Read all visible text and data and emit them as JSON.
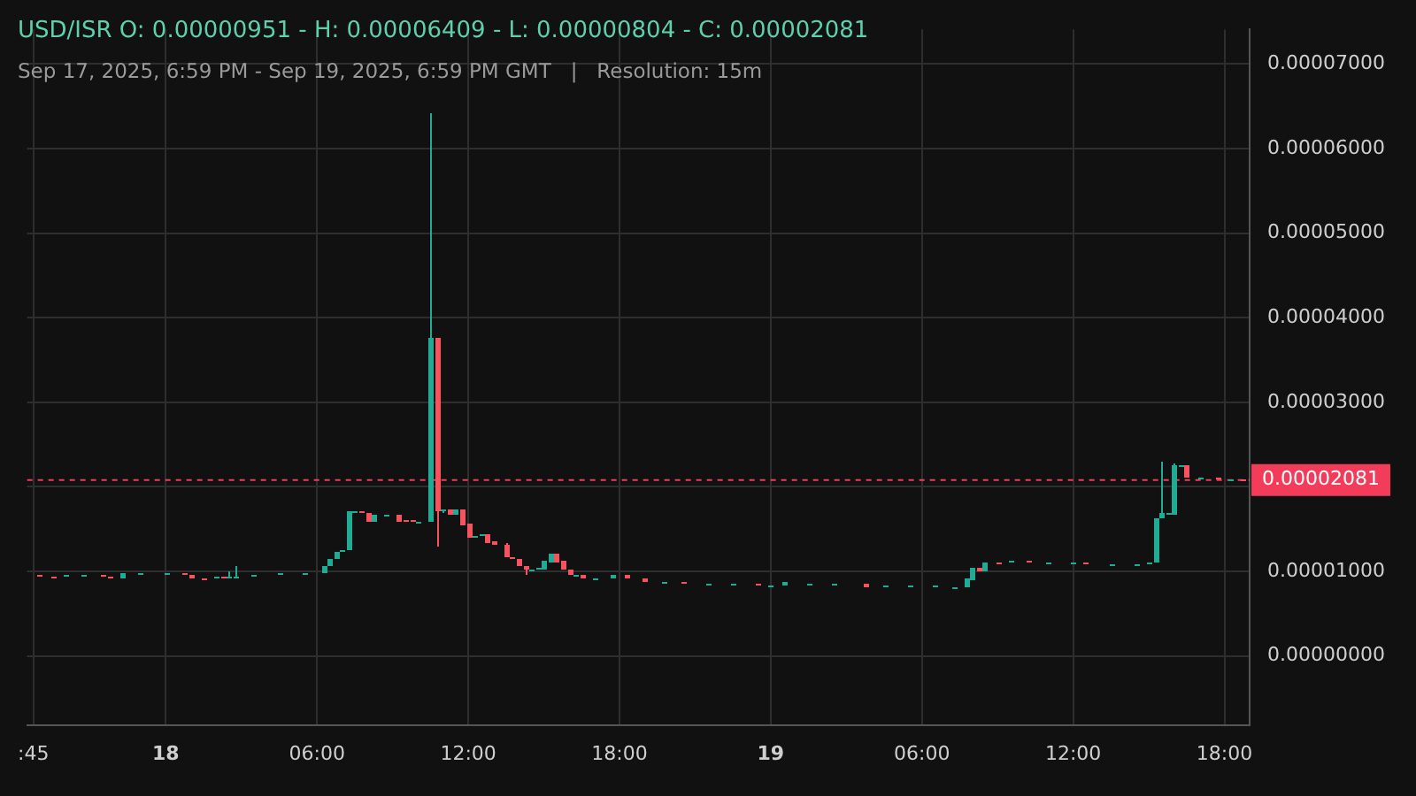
{
  "chart_data": {
    "type": "candlestick",
    "title": "USD/ISR O: 0.00000951 - H: 0.00006409 - L: 0.00000804 - C: 0.00002081",
    "subtitle": "Sep 17, 2025, 6:59 PM - Sep 19, 2025, 6:59 PM GMT   |   Resolution: 15m",
    "x": [
      "2025-09-17T19:00",
      "2025-09-17T19:30",
      "2025-09-17T20:00",
      "2025-09-17T20:45",
      "2025-09-17T21:30",
      "2025-09-17T21:45",
      "2025-09-17T22:15",
      "2025-09-17T23:00",
      "2025-09-18T00:00",
      "2025-09-18T00:45",
      "2025-09-18T01:00",
      "2025-09-18T01:30",
      "2025-09-18T02:00",
      "2025-09-18T02:15",
      "2025-09-18T02:30",
      "2025-09-18T02:45",
      "2025-09-18T03:30",
      "2025-09-18T04:30",
      "2025-09-18T05:30",
      "2025-09-18T06:15",
      "2025-09-18T06:30",
      "2025-09-18T06:45",
      "2025-09-18T07:00",
      "2025-09-18T07:15",
      "2025-09-18T07:30",
      "2025-09-18T07:45",
      "2025-09-18T08:00",
      "2025-09-18T08:15",
      "2025-09-18T08:45",
      "2025-09-18T09:15",
      "2025-09-18T09:30",
      "2025-09-18T09:45",
      "2025-09-18T10:00",
      "2025-09-18T10:30",
      "2025-09-18T10:45",
      "2025-09-18T11:00",
      "2025-09-18T11:15",
      "2025-09-18T11:30",
      "2025-09-18T11:45",
      "2025-09-18T12:00",
      "2025-09-18T12:15",
      "2025-09-18T12:30",
      "2025-09-18T12:45",
      "2025-09-18T13:00",
      "2025-09-18T13:30",
      "2025-09-18T13:45",
      "2025-09-18T14:00",
      "2025-09-18T14:15",
      "2025-09-18T14:30",
      "2025-09-18T14:45",
      "2025-09-18T15:00",
      "2025-09-18T15:15",
      "2025-09-18T15:30",
      "2025-09-18T15:45",
      "2025-09-18T16:00",
      "2025-09-18T16:15",
      "2025-09-18T16:30",
      "2025-09-18T17:00",
      "2025-09-18T17:45",
      "2025-09-18T18:15",
      "2025-09-18T19:00",
      "2025-09-18T19:45",
      "2025-09-18T20:30",
      "2025-09-18T21:30",
      "2025-09-18T22:30",
      "2025-09-18T23:30",
      "2025-09-19T00:00",
      "2025-09-19T00:30",
      "2025-09-19T01:30",
      "2025-09-19T02:30",
      "2025-09-19T03:45",
      "2025-09-19T04:30",
      "2025-09-19T05:30",
      "2025-09-19T06:30",
      "2025-09-19T07:15",
      "2025-09-19T07:45",
      "2025-09-19T08:00",
      "2025-09-19T08:15",
      "2025-09-19T08:30",
      "2025-09-19T09:00",
      "2025-09-19T09:30",
      "2025-09-19T10:15",
      "2025-09-19T11:00",
      "2025-09-19T12:00",
      "2025-09-19T12:30",
      "2025-09-19T13:30",
      "2025-09-19T14:30",
      "2025-09-19T15:00",
      "2025-09-19T15:15",
      "2025-09-19T15:30",
      "2025-09-19T15:45",
      "2025-09-19T16:00",
      "2025-09-19T16:15",
      "2025-09-19T16:30",
      "2025-09-19T17:00",
      "2025-09-19T17:45",
      "2025-09-19T18:15",
      "2025-09-19T18:45"
    ],
    "ohlc": [
      [
        9.51e-06,
        9.51e-06,
        9.35e-06,
        9.35e-06
      ],
      [
        9.35e-06,
        9.35e-06,
        9.35e-06,
        9.35e-06
      ],
      [
        9.35e-06,
        9.6e-06,
        9.35e-06,
        9.6e-06
      ],
      [
        9.6e-06,
        9.6e-06,
        9.6e-06,
        9.6e-06
      ],
      [
        9.6e-06,
        9.6e-06,
        9.35e-06,
        9.35e-06
      ],
      [
        9.35e-06,
        9.35e-06,
        9.2e-06,
        9.2e-06
      ],
      [
        9.2e-06,
        9.85e-06,
        9.2e-06,
        9.85e-06
      ],
      [
        9.85e-06,
        9.85e-06,
        9.85e-06,
        9.85e-06
      ],
      [
        9.85e-06,
        9.85e-06,
        9.85e-06,
        9.85e-06
      ],
      [
        9.85e-06,
        9.85e-06,
        9.65e-06,
        9.65e-06
      ],
      [
        9.65e-06,
        9.65e-06,
        9.25e-06,
        9.25e-06
      ],
      [
        9.25e-06,
        9.25e-06,
        9.25e-06,
        9.25e-06
      ],
      [
        9.25e-06,
        9.45e-06,
        9.25e-06,
        9.45e-06
      ],
      [
        9.45e-06,
        9.45e-06,
        9.25e-06,
        9.25e-06
      ],
      [
        9.25e-06,
        1.01e-05,
        9.25e-06,
        9.45e-06
      ],
      [
        9.45e-06,
        1.065e-05,
        9.45e-06,
        9.45e-06
      ],
      [
        9.45e-06,
        9.6e-06,
        9.45e-06,
        9.6e-06
      ],
      [
        9.6e-06,
        9.85e-06,
        9.6e-06,
        9.85e-06
      ],
      [
        9.85e-06,
        9.85e-06,
        9.85e-06,
        9.85e-06
      ],
      [
        9.85e-06,
        1.065e-05,
        9.85e-06,
        1.065e-05
      ],
      [
        1.065e-05,
        1.155e-05,
        1.065e-05,
        1.155e-05
      ],
      [
        1.155e-05,
        1.237e-05,
        1.155e-05,
        1.237e-05
      ],
      [
        1.237e-05,
        1.251e-05,
        1.237e-05,
        1.251e-05
      ],
      [
        1.251e-05,
        1.704e-05,
        1.251e-05,
        1.704e-05
      ],
      [
        1.704e-05,
        1.718e-05,
        1.704e-05,
        1.718e-05
      ],
      [
        1.718e-05,
        1.718e-05,
        1.69e-05,
        1.69e-05
      ],
      [
        1.69e-05,
        1.69e-05,
        1.595e-05,
        1.595e-05
      ],
      [
        1.595e-05,
        1.67e-05,
        1.595e-05,
        1.663e-05
      ],
      [
        1.67e-05,
        1.67e-05,
        1.67e-05,
        1.67e-05
      ],
      [
        1.67e-05,
        1.67e-05,
        1.595e-05,
        1.595e-05
      ],
      [
        1.605e-05,
        1.605e-05,
        1.605e-05,
        1.605e-05
      ],
      [
        1.605e-05,
        1.605e-05,
        1.581e-05,
        1.581e-05
      ],
      [
        1.581e-05,
        1.588e-05,
        1.581e-05,
        1.588e-05
      ],
      [
        1.581e-05,
        6.409e-05,
        1.581e-05,
        3.766e-05
      ],
      [
        3.766e-05,
        3.766e-05,
        1.285e-05,
        1.718e-05
      ],
      [
        1.718e-05,
        1.732e-05,
        1.691e-05,
        1.725e-05
      ],
      [
        1.732e-05,
        1.732e-05,
        1.677e-05,
        1.677e-05
      ],
      [
        1.677e-05,
        1.732e-05,
        1.677e-05,
        1.732e-05
      ],
      [
        1.732e-05,
        1.732e-05,
        1.553e-05,
        1.553e-05
      ],
      [
        1.56e-05,
        1.56e-05,
        1.388e-05,
        1.388e-05
      ],
      [
        1.388e-05,
        1.416e-05,
        1.388e-05,
        1.416e-05
      ],
      [
        1.416e-05,
        1.43e-05,
        1.416e-05,
        1.43e-05
      ],
      [
        1.43e-05,
        1.443e-05,
        1.34e-05,
        1.34e-05
      ],
      [
        1.361e-05,
        1.361e-05,
        1.306e-05,
        1.306e-05
      ],
      [
        1.313e-05,
        1.34e-05,
        1.161e-05,
        1.161e-05
      ],
      [
        1.168e-05,
        1.168e-05,
        1.141e-05,
        1.141e-05
      ],
      [
        1.155e-05,
        1.155e-05,
        1.058e-05,
        1.065e-05
      ],
      [
        1.072e-05,
        1.072e-05,
        9.55e-06,
        1.017e-05
      ],
      [
        1.017e-05,
        1.031e-05,
        1.017e-05,
        1.031e-05
      ],
      [
        1.017e-05,
        1.051e-05,
        1.017e-05,
        1.051e-05
      ],
      [
        1.031e-05,
        1.134e-05,
        1.031e-05,
        1.134e-05
      ],
      [
        1.113e-05,
        1.216e-05,
        1.113e-05,
        1.216e-05
      ],
      [
        1.216e-05,
        1.216e-05,
        1.113e-05,
        1.113e-05
      ],
      [
        1.134e-05,
        1.134e-05,
        1.017e-05,
        1.017e-05
      ],
      [
        1.024e-05,
        1.024e-05,
        9.55e-06,
        9.55e-06
      ],
      [
        9.55e-06,
        9.62e-06,
        9.55e-06,
        9.62e-06
      ],
      [
        9.62e-06,
        9.62e-06,
        9.14e-06,
        9.14e-06
      ],
      [
        9.14e-06,
        9.21e-06,
        9.14e-06,
        9.21e-06
      ],
      [
        9.14e-06,
        9.48e-06,
        9.14e-06,
        9.48e-06
      ],
      [
        9.49e-06,
        9.49e-06,
        9.21e-06,
        9.21e-06
      ],
      [
        9.21e-06,
        9.21e-06,
        8.8e-06,
        8.8e-06
      ],
      [
        8.8e-06,
        8.8e-06,
        8.8e-06,
        8.8e-06
      ],
      [
        8.8e-06,
        8.8e-06,
        8.52e-06,
        8.52e-06
      ],
      [
        8.59e-06,
        8.59e-06,
        8.59e-06,
        8.59e-06
      ],
      [
        8.59e-06,
        8.59e-06,
        8.59e-06,
        8.59e-06
      ],
      [
        8.59e-06,
        8.59e-06,
        8.25e-06,
        8.25e-06
      ],
      [
        8.38e-06,
        8.38e-06,
        8.38e-06,
        8.38e-06
      ],
      [
        8.38e-06,
        8.66e-06,
        8.38e-06,
        8.66e-06
      ],
      [
        8.59e-06,
        8.59e-06,
        8.59e-06,
        8.59e-06
      ],
      [
        8.59e-06,
        8.59e-06,
        8.59e-06,
        8.59e-06
      ],
      [
        8.59e-06,
        8.59e-06,
        8.04e-06,
        8.11e-06
      ],
      [
        8.18e-06,
        8.25e-06,
        8.18e-06,
        8.25e-06
      ],
      [
        8.18e-06,
        8.25e-06,
        8.18e-06,
        8.25e-06
      ],
      [
        8.18e-06,
        8.25e-06,
        8.18e-06,
        8.25e-06
      ],
      [
        8.18e-06,
        8.18e-06,
        8.1e-06,
        8.18e-06
      ],
      [
        8.18e-06,
        9.07e-06,
        8.18e-06,
        9.07e-06
      ],
      [
        8.93e-06,
        1.052e-05,
        8.93e-06,
        1.052e-05
      ],
      [
        1.052e-05,
        1.052e-05,
        1.01e-05,
        1.01e-05
      ],
      [
        1.01e-05,
        1.113e-05,
        1.01e-05,
        1.113e-05
      ],
      [
        1.106e-05,
        1.106e-05,
        1.106e-05,
        1.106e-05
      ],
      [
        1.106e-05,
        1.127e-05,
        1.106e-05,
        1.127e-05
      ],
      [
        1.127e-05,
        1.127e-05,
        1.1e-05,
        1.1e-05
      ],
      [
        1.106e-05,
        1.106e-05,
        1.106e-05,
        1.106e-05
      ],
      [
        1.106e-05,
        1.106e-05,
        1.106e-05,
        1.106e-05
      ],
      [
        1.106e-05,
        1.106e-05,
        1.079e-05,
        1.079e-05
      ],
      [
        1.086e-05,
        1.086e-05,
        1.086e-05,
        1.086e-05
      ],
      [
        1.086e-05,
        1.086e-05,
        1.086e-05,
        1.086e-05
      ],
      [
        1.079e-05,
        1.113e-05,
        1.079e-05,
        1.113e-05
      ],
      [
        1.1e-05,
        1.629e-05,
        1.1e-05,
        1.629e-05
      ],
      [
        1.629e-05,
        2.289e-05,
        1.629e-05,
        1.684e-05
      ],
      [
        1.677e-05,
        1.684e-05,
        1.677e-05,
        1.684e-05
      ],
      [
        1.677e-05,
        2.268e-05,
        1.677e-05,
        2.247e-05
      ],
      [
        2.247e-05,
        2.247e-05,
        2.247e-05,
        2.247e-05
      ],
      [
        2.247e-05,
        2.247e-05,
        2.117e-05,
        2.117e-05
      ],
      [
        2.117e-05,
        2.117e-05,
        2.117e-05,
        2.117e-05
      ],
      [
        2.117e-05,
        2.117e-05,
        2.089e-05,
        2.089e-05
      ],
      [
        2.095e-05,
        2.095e-05,
        2.095e-05,
        2.095e-05
      ],
      [
        2.095e-05,
        2.095e-05,
        2.081e-05,
        2.081e-05
      ]
    ],
    "colors": [
      "#f7525f",
      "#f7525f",
      "#22ab94",
      "#22ab94",
      "#f7525f",
      "#f7525f",
      "#22ab94",
      "#22ab94",
      "#22ab94",
      "#f7525f",
      "#f7525f",
      "#f7525f",
      "#22ab94",
      "#f7525f",
      "#22ab94",
      "#22ab94",
      "#22ab94",
      "#22ab94",
      "#22ab94",
      "#22ab94",
      "#22ab94",
      "#22ab94",
      "#22ab94",
      "#22ab94",
      "#22ab94",
      "#f7525f",
      "#f7525f",
      "#22ab94",
      "#22ab94",
      "#f7525f",
      "#f7525f",
      "#f7525f",
      "#22ab94",
      "#22ab94",
      "#f7525f",
      "#22ab94",
      "#f7525f",
      "#22ab94",
      "#f7525f",
      "#f7525f",
      "#22ab94",
      "#22ab94",
      "#f7525f",
      "#f7525f",
      "#f7525f",
      "#f7525f",
      "#f7525f",
      "#f7525f",
      "#22ab94",
      "#22ab94",
      "#22ab94",
      "#22ab94",
      "#f7525f",
      "#f7525f",
      "#f7525f",
      "#22ab94",
      "#f7525f",
      "#22ab94",
      "#22ab94",
      "#f7525f",
      "#f7525f",
      "#22ab94",
      "#f7525f",
      "#22ab94",
      "#22ab94",
      "#f7525f",
      "#22ab94",
      "#22ab94",
      "#22ab94",
      "#22ab94",
      "#f7525f",
      "#22ab94",
      "#22ab94",
      "#22ab94",
      "#22ab94",
      "#22ab94",
      "#22ab94",
      "#f7525f",
      "#22ab94",
      "#f7525f",
      "#22ab94",
      "#f7525f",
      "#22ab94",
      "#22ab94",
      "#f7525f",
      "#22ab94",
      "#22ab94",
      "#22ab94",
      "#22ab94",
      "#22ab94",
      "#22ab94",
      "#22ab94",
      "#22ab94",
      "#f7525f",
      "#22ab94",
      "#f7525f",
      "#22ab94",
      "#f7525f"
    ],
    "xlim": [
      "2025-09-17T18:30",
      "2025-09-19T19:00"
    ],
    "xticks": [
      {
        "value": "2025-09-17T18:45",
        "label": ":45"
      },
      {
        "value": "2025-09-18T00:00",
        "label": "18"
      },
      {
        "value": "2025-09-18T06:00",
        "label": "06:00"
      },
      {
        "value": "2025-09-18T12:00",
        "label": "12:00"
      },
      {
        "value": "2025-09-18T18:00",
        "label": "18:00"
      },
      {
        "value": "2025-09-19T00:00",
        "label": "19"
      },
      {
        "value": "2025-09-19T06:00",
        "label": "06:00"
      },
      {
        "value": "2025-09-19T12:00",
        "label": "12:00"
      },
      {
        "value": "2025-09-19T18:00",
        "label": "18:00"
      }
    ],
    "ylim": [
      -8.2e-06,
      7.41e-05
    ],
    "yticks": [
      {
        "value": 0,
        "label": "0.00000000"
      },
      {
        "value": 1e-05,
        "label": "0.00001000"
      },
      {
        "value": 2e-05,
        "label": null
      },
      {
        "value": 3e-05,
        "label": "0.00003000"
      },
      {
        "value": 4e-05,
        "label": "0.00004000"
      },
      {
        "value": 5e-05,
        "label": "0.00005000"
      },
      {
        "value": 6e-05,
        "label": "0.00006000"
      },
      {
        "value": 7e-05,
        "label": "0.00007000"
      }
    ],
    "grid": true,
    "ref_lines": [
      {
        "axis": "y",
        "value": 2.081e-05,
        "label": "0.00002081",
        "color": "#f23c5a",
        "line_style": "dashed"
      }
    ]
  }
}
